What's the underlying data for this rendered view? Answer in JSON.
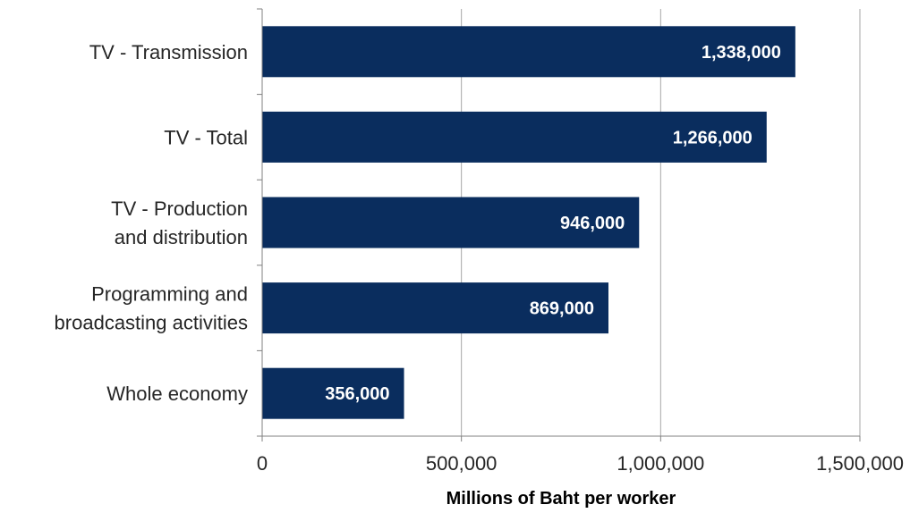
{
  "chart_data": {
    "type": "bar",
    "orientation": "horizontal",
    "categories": [
      "TV - Transmission",
      "TV - Total",
      "TV - Production\nand distribution",
      "Programming and\nbroadcasting activities",
      "Whole economy"
    ],
    "values": [
      1338000,
      1266000,
      946000,
      869000,
      356000
    ],
    "data_labels": [
      "1,338,000",
      "1,266,000",
      "946,000",
      "869,000",
      "356,000"
    ],
    "title": "",
    "xlabel": "Millions of Baht per worker",
    "ylabel": "",
    "xlim": [
      0,
      1500000
    ],
    "x_ticks": [
      0,
      500000,
      1000000,
      1500000
    ],
    "x_tick_labels": [
      "0",
      "500,000",
      "1,000,000",
      "1,500,000"
    ],
    "grid": "vertical",
    "legend": "none",
    "colors": {
      "bar": "#0a2d5e",
      "data_label": "#ffffff",
      "gridline": "#a6a6a6",
      "axis": "#808080",
      "text": "#262626"
    }
  }
}
